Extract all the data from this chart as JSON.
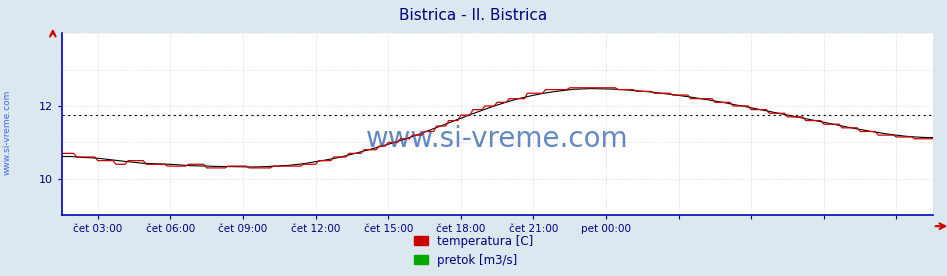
{
  "title": "Bistrica - Il. Bistrica",
  "title_color": "#000080",
  "bg_color": "#dce8f0",
  "plot_bg_color": "#ffffff",
  "grid_h_color": "#e8c8c8",
  "grid_v_color": "#f0b8b8",
  "watermark_text": "www.si-vreme.com",
  "watermark_color": "#3060b0",
  "sidebar_text": "www.si-vreme.com",
  "sidebar_color": "#4169e1",
  "temp_color": "#cc0000",
  "avg_color": "#000000",
  "pretok_color": "#00aa00",
  "legend_temp": "temperatura [C]",
  "legend_pretok": "pretok [m3/s]",
  "xlim": [
    0,
    288
  ],
  "ylim": [
    9,
    14
  ],
  "ytick_vals": [
    10,
    12
  ],
  "ytick_labels": [
    "10",
    "12"
  ],
  "xtick_positions": [
    12,
    36,
    60,
    84,
    108,
    132,
    156,
    180,
    204,
    228,
    252,
    276
  ],
  "xtick_labels": [
    "čet 03:00",
    "čet 06:00",
    "čet 09:00",
    "čet 12:00",
    "čet 15:00",
    "čet 18:00",
    "čet 21:00",
    "pet 00:00",
    "",
    "",
    "",
    ""
  ],
  "avg_line_value": 11.75,
  "avg_line_style": "dotted"
}
